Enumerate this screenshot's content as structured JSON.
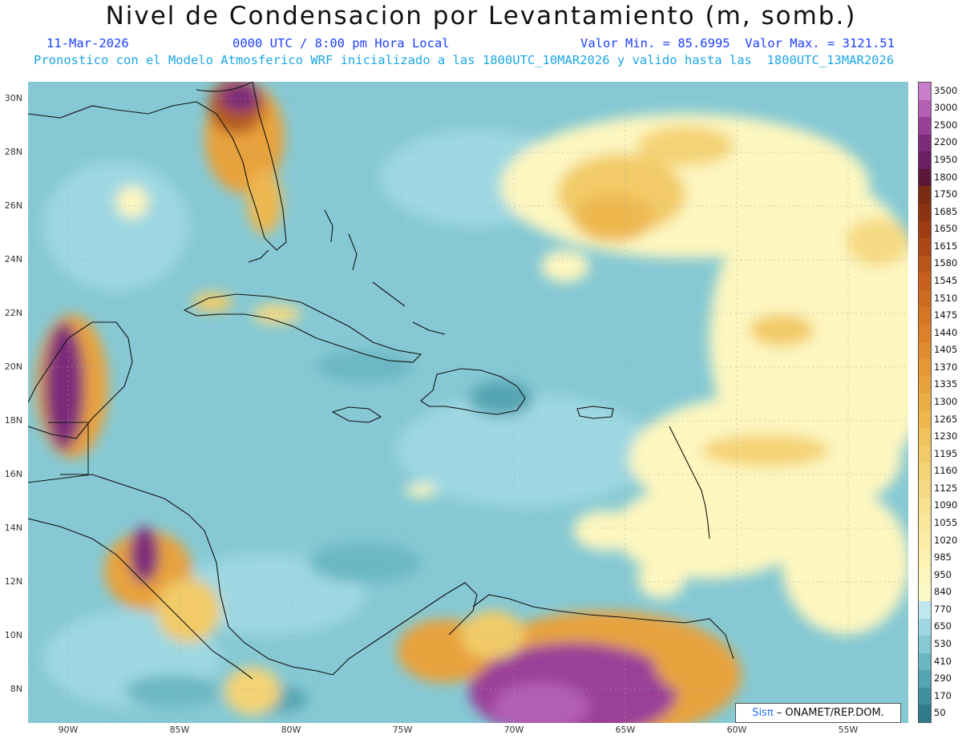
{
  "header": {
    "title": "Nivel de Condensacion por Levantamiento (m, somb.)",
    "date": "11-Mar-2026",
    "time": "0000 UTC / 8:00 pm Hora Local",
    "minmax": "Valor Min. = 85.6995  Valor Max. = 3121.51",
    "description": "Pronostico con el Modelo Atmosferico WRF inicializado a las 1800UTC_10MAR2026 y valido hasta las  1800UTC_13MAR2026"
  },
  "axes": {
    "lat_labels": [
      "30N",
      "28N",
      "26N",
      "24N",
      "22N",
      "20N",
      "18N",
      "16N",
      "14N",
      "12N",
      "10N",
      "8N"
    ],
    "lon_labels": [
      "90W",
      "85W",
      "80W",
      "75W",
      "70W",
      "65W",
      "60W",
      "55W"
    ]
  },
  "colorbar": {
    "labels": [
      "3500",
      "3000",
      "2500",
      "2200",
      "1950",
      "1800",
      "1750",
      "1685",
      "1650",
      "1615",
      "1580",
      "1545",
      "1510",
      "1475",
      "1440",
      "1405",
      "1370",
      "1335",
      "1300",
      "1265",
      "1230",
      "1195",
      "1160",
      "1125",
      "1090",
      "1055",
      "1020",
      "985",
      "950",
      "840",
      "770",
      "650",
      "530",
      "410",
      "290",
      "170",
      "50"
    ],
    "colors": [
      "#c77dc9",
      "#b45fb6",
      "#9a3f98",
      "#7e2a7a",
      "#6a1f62",
      "#5c1838",
      "#7a2c12",
      "#8c3412",
      "#9e3d14",
      "#ad4716",
      "#bb5419",
      "#c6601c",
      "#cf6b20",
      "#d67624",
      "#dc8129",
      "#e18c2e",
      "#e59734",
      "#e8a23c",
      "#ebad45",
      "#eeb84f",
      "#f0c25b",
      "#f2cb68",
      "#f4d376",
      "#f6da83",
      "#f8e190",
      "#f9e79b",
      "#fbeda6",
      "#fcf2b2",
      "#fdf6bf",
      "#fdf8c8",
      "#bfe8ee",
      "#9ed8e2",
      "#86c9d4",
      "#6cb7c4",
      "#55a4b3",
      "#3f8fa0",
      "#2d7b8d"
    ]
  },
  "credit": {
    "brand": "Sisπ",
    "text": " – ONAMET/REP.DOM."
  }
}
